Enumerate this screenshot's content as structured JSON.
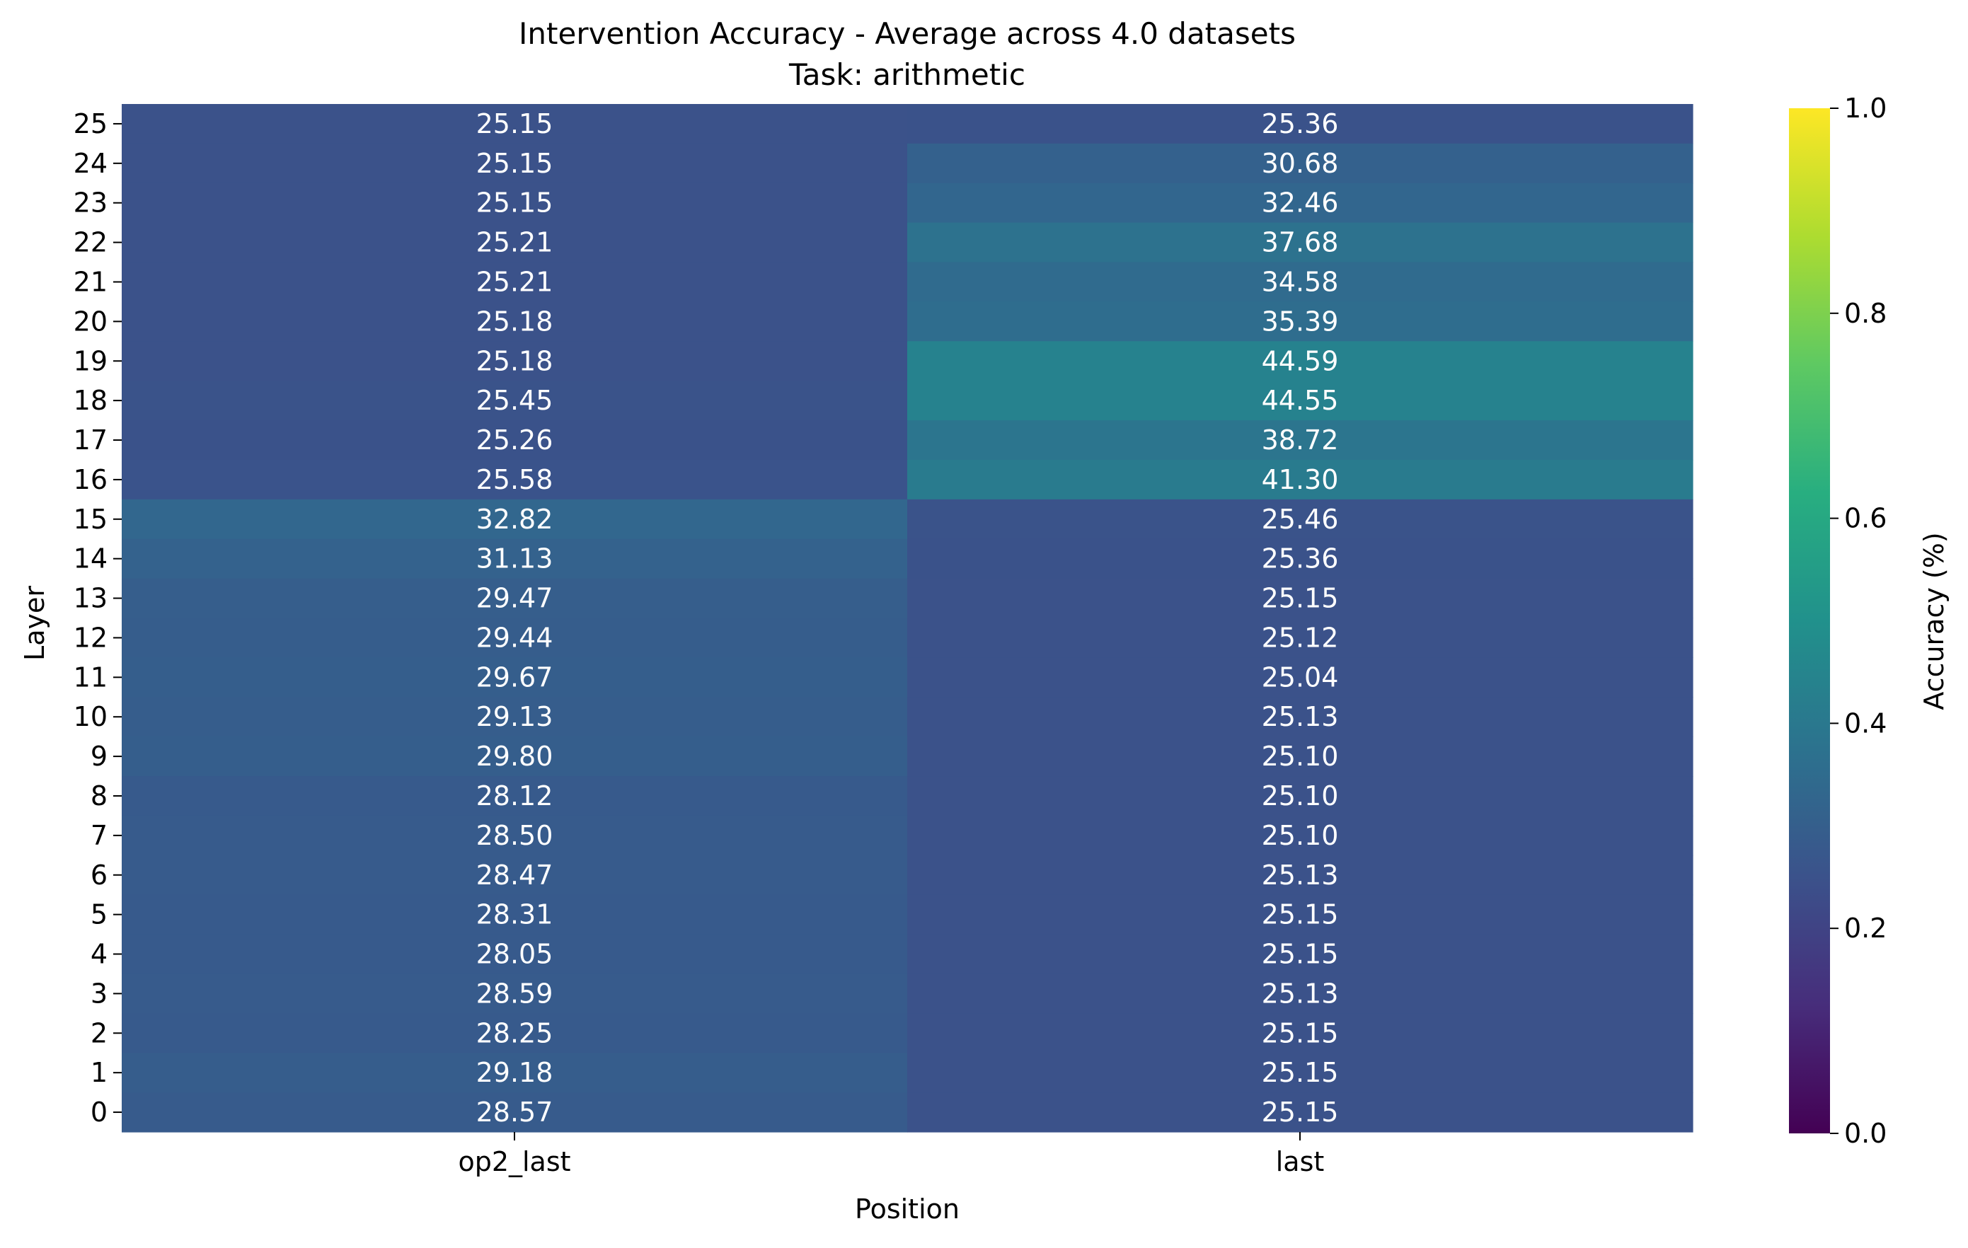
{
  "chart_data": {
    "type": "heatmap",
    "title": "Intervention Accuracy - Average across 4.0 datasets",
    "subtitle": "Task: arithmetic",
    "xlabel": "Position",
    "ylabel": "Layer",
    "x_categories": [
      "op2_last",
      "last"
    ],
    "y_categories": [
      25,
      24,
      23,
      22,
      21,
      20,
      19,
      18,
      17,
      16,
      15,
      14,
      13,
      12,
      11,
      10,
      9,
      8,
      7,
      6,
      5,
      4,
      3,
      2,
      1,
      0
    ],
    "values": [
      [
        25.15,
        25.36
      ],
      [
        25.15,
        30.68
      ],
      [
        25.15,
        32.46
      ],
      [
        25.21,
        37.68
      ],
      [
        25.21,
        34.58
      ],
      [
        25.18,
        35.39
      ],
      [
        25.18,
        44.59
      ],
      [
        25.45,
        44.55
      ],
      [
        25.26,
        38.72
      ],
      [
        25.58,
        41.3
      ],
      [
        32.82,
        25.46
      ],
      [
        31.13,
        25.36
      ],
      [
        29.47,
        25.15
      ],
      [
        29.44,
        25.12
      ],
      [
        29.67,
        25.04
      ],
      [
        29.13,
        25.13
      ],
      [
        29.8,
        25.1
      ],
      [
        28.12,
        25.1
      ],
      [
        28.5,
        25.1
      ],
      [
        28.47,
        25.13
      ],
      [
        28.31,
        25.15
      ],
      [
        28.05,
        25.15
      ],
      [
        28.59,
        25.13
      ],
      [
        28.25,
        25.15
      ],
      [
        29.18,
        25.15
      ],
      [
        28.57,
        25.15
      ]
    ],
    "cell_labels": [
      [
        "25.15",
        "25.36"
      ],
      [
        "25.15",
        "30.68"
      ],
      [
        "25.15",
        "32.46"
      ],
      [
        "25.21",
        "37.68"
      ],
      [
        "25.21",
        "34.58"
      ],
      [
        "25.18",
        "35.39"
      ],
      [
        "25.18",
        "44.59"
      ],
      [
        "25.45",
        "44.55"
      ],
      [
        "25.26",
        "38.72"
      ],
      [
        "25.58",
        "41.30"
      ],
      [
        "32.82",
        "25.46"
      ],
      [
        "31.13",
        "25.36"
      ],
      [
        "29.47",
        "25.15"
      ],
      [
        "29.44",
        "25.12"
      ],
      [
        "29.67",
        "25.04"
      ],
      [
        "29.13",
        "25.13"
      ],
      [
        "29.80",
        "25.10"
      ],
      [
        "28.12",
        "25.10"
      ],
      [
        "28.50",
        "25.10"
      ],
      [
        "28.47",
        "25.13"
      ],
      [
        "28.31",
        "25.15"
      ],
      [
        "28.05",
        "25.15"
      ],
      [
        "28.59",
        "25.13"
      ],
      [
        "28.25",
        "25.15"
      ],
      [
        "29.18",
        "25.15"
      ],
      [
        "28.57",
        "25.15"
      ]
    ],
    "colormap": "viridis",
    "value_range": [
      0,
      100
    ],
    "colorbar": {
      "label": "Accuracy (%)",
      "range": [
        0.0,
        1.0
      ],
      "ticks": [
        "0.0",
        "0.2",
        "0.4",
        "0.6",
        "0.8",
        "1.0"
      ],
      "position": "right"
    },
    "annotation_color": "#ffffff"
  }
}
